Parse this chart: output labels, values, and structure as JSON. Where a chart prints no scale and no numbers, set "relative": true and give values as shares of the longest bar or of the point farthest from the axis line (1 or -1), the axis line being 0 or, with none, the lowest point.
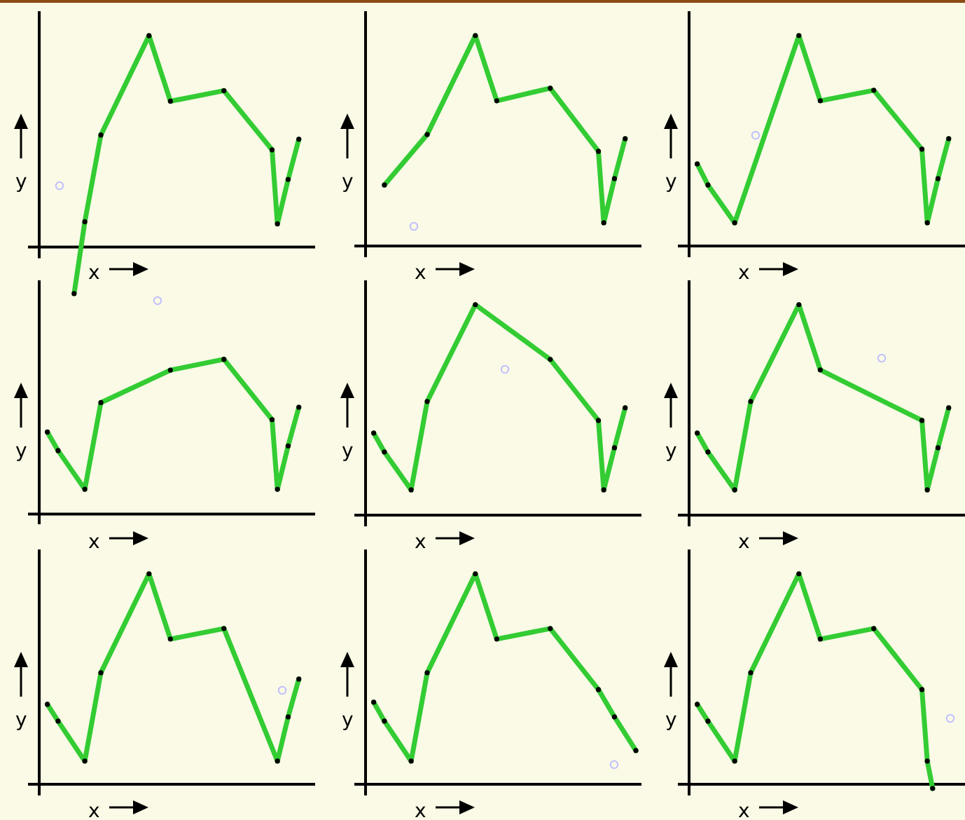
{
  "chart_data": [
    {
      "type": "line",
      "xlabel": "x",
      "ylabel": "y",
      "relative": true,
      "marker": "circle",
      "categories": [
        null,
        null,
        null,
        null,
        null,
        null,
        null,
        null,
        null,
        null,
        null,
        null,
        null,
        null,
        null,
        null,
        null,
        null,
        null,
        null,
        null,
        null,
        null,
        null,
        null,
        null,
        null,
        null,
        null,
        null,
        null,
        null,
        null,
        null,
        null,
        null,
        null,
        null,
        null,
        null,
        null,
        null,
        null,
        null,
        null,
        null,
        null,
        null,
        null,
        null,
        null
      ],
      "series": [
        {
          "color": "#33cc33",
          "values": [
            null,
            null,
            null,
            null,
            null,
            null,
            -0.22,
            null,
            0.12,
            null,
            null,
            0.53,
            null,
            null,
            null,
            null,
            null,
            null,
            null,
            null,
            1,
            null,
            null,
            null,
            0.69,
            null,
            null,
            null,
            null,
            null,
            null,
            null,
            null,
            null,
            0.74,
            null,
            null,
            null,
            null,
            null,
            null,
            null,
            null,
            0.46,
            0.11,
            null,
            0.32,
            null,
            0.51,
            null,
            null
          ]
        }
      ]
    },
    {
      "type": "line",
      "xlabel": "x",
      "ylabel": "y",
      "relative": true,
      "marker": "circle",
      "categories": [
        null,
        null,
        null,
        null,
        null,
        null,
        null,
        null,
        null,
        null,
        null,
        null,
        null,
        null,
        null,
        null,
        null,
        null,
        null,
        null,
        null,
        null,
        null,
        null,
        null,
        null,
        null,
        null,
        null,
        null,
        null,
        null,
        null,
        null,
        null,
        null,
        null,
        null,
        null,
        null,
        null,
        null,
        null,
        null,
        null,
        null,
        null,
        null,
        null,
        null,
        null
      ],
      "series": [
        {
          "color": "#33cc33",
          "values": [
            null,
            null,
            null,
            0.29,
            null,
            null,
            null,
            null,
            null,
            null,
            null,
            0.53,
            null,
            null,
            null,
            null,
            null,
            null,
            null,
            null,
            1,
            null,
            null,
            null,
            0.69,
            null,
            null,
            null,
            null,
            null,
            null,
            null,
            null,
            null,
            0.75,
            null,
            null,
            null,
            null,
            null,
            null,
            null,
            null,
            0.45,
            0.11,
            null,
            0.32,
            null,
            0.51,
            null,
            null
          ]
        }
      ]
    },
    {
      "type": "line",
      "xlabel": "x",
      "ylabel": "y",
      "relative": true,
      "marker": "circle",
      "categories": [
        null,
        null,
        null,
        null,
        null,
        null,
        null,
        null,
        null,
        null,
        null,
        null,
        null,
        null,
        null,
        null,
        null,
        null,
        null,
        null,
        null,
        null,
        null,
        null,
        null,
        null,
        null,
        null,
        null,
        null,
        null,
        null,
        null,
        null,
        null,
        null,
        null,
        null,
        null,
        null,
        null,
        null,
        null,
        null,
        null,
        null,
        null,
        null,
        null,
        null,
        null
      ],
      "series": [
        {
          "color": "#33cc33",
          "values": [
            null,
            0.39,
            null,
            0.29,
            null,
            null,
            null,
            null,
            0.11,
            null,
            null,
            null,
            null,
            null,
            null,
            null,
            null,
            null,
            null,
            null,
            1,
            null,
            null,
            null,
            0.69,
            null,
            null,
            null,
            null,
            null,
            null,
            null,
            null,
            null,
            0.74,
            null,
            null,
            null,
            null,
            null,
            null,
            null,
            null,
            0.46,
            0.11,
            null,
            0.32,
            null,
            0.51,
            null,
            null
          ]
        }
      ]
    },
    {
      "type": "line",
      "xlabel": "x",
      "ylabel": "y",
      "relative": true,
      "marker": "circle",
      "categories": [
        null,
        null,
        null,
        null,
        null,
        null,
        null,
        null,
        null,
        null,
        null,
        null,
        null,
        null,
        null,
        null,
        null,
        null,
        null,
        null,
        null,
        null,
        null,
        null,
        null,
        null,
        null,
        null,
        null,
        null,
        null,
        null,
        null,
        null,
        null,
        null,
        null,
        null,
        null,
        null,
        null,
        null,
        null,
        null,
        null,
        null,
        null,
        null,
        null,
        null,
        null
      ],
      "series": [
        {
          "color": "#33cc33",
          "values": [
            null,
            0.53,
            null,
            0.41,
            null,
            null,
            null,
            null,
            0.16,
            null,
            null,
            0.72,
            null,
            null,
            null,
            null,
            null,
            null,
            null,
            null,
            null,
            null,
            null,
            null,
            0.93,
            null,
            null,
            null,
            null,
            null,
            null,
            null,
            null,
            null,
            1,
            null,
            null,
            null,
            null,
            null,
            null,
            null,
            null,
            0.61,
            0.16,
            null,
            0.44,
            null,
            0.69,
            null,
            null
          ]
        }
      ]
    },
    {
      "type": "line",
      "xlabel": "x",
      "ylabel": "y",
      "relative": true,
      "marker": "circle",
      "categories": [
        null,
        null,
        null,
        null,
        null,
        null,
        null,
        null,
        null,
        null,
        null,
        null,
        null,
        null,
        null,
        null,
        null,
        null,
        null,
        null,
        null,
        null,
        null,
        null,
        null,
        null,
        null,
        null,
        null,
        null,
        null,
        null,
        null,
        null,
        null,
        null,
        null,
        null,
        null,
        null,
        null,
        null,
        null,
        null,
        null,
        null,
        null,
        null,
        null,
        null,
        null
      ],
      "series": [
        {
          "color": "#33cc33",
          "values": [
            null,
            0.39,
            null,
            0.3,
            null,
            null,
            null,
            null,
            0.12,
            null,
            null,
            0.54,
            null,
            null,
            null,
            null,
            null,
            null,
            null,
            null,
            1,
            null,
            null,
            null,
            null,
            null,
            null,
            null,
            null,
            null,
            null,
            null,
            null,
            null,
            0.74,
            null,
            null,
            null,
            null,
            null,
            null,
            null,
            null,
            0.45,
            0.12,
            null,
            0.32,
            null,
            0.51,
            null,
            null
          ]
        }
      ]
    },
    {
      "type": "line",
      "xlabel": "x",
      "ylabel": "y",
      "relative": true,
      "marker": "circle",
      "categories": [
        null,
        null,
        null,
        null,
        null,
        null,
        null,
        null,
        null,
        null,
        null,
        null,
        null,
        null,
        null,
        null,
        null,
        null,
        null,
        null,
        null,
        null,
        null,
        null,
        null,
        null,
        null,
        null,
        null,
        null,
        null,
        null,
        null,
        null,
        null,
        null,
        null,
        null,
        null,
        null,
        null,
        null,
        null,
        null,
        null,
        null,
        null,
        null,
        null,
        null,
        null
      ],
      "series": [
        {
          "color": "#33cc33",
          "values": [
            null,
            0.39,
            null,
            0.3,
            null,
            null,
            null,
            null,
            0.12,
            null,
            null,
            0.54,
            null,
            null,
            null,
            null,
            null,
            null,
            null,
            null,
            1,
            null,
            null,
            null,
            0.69,
            null,
            null,
            null,
            null,
            null,
            null,
            null,
            null,
            null,
            null,
            null,
            null,
            null,
            null,
            null,
            null,
            null,
            null,
            0.45,
            0.12,
            null,
            0.32,
            null,
            0.51,
            null,
            null
          ]
        }
      ]
    },
    {
      "type": "line",
      "xlabel": "x",
      "ylabel": "y",
      "relative": true,
      "marker": "circle",
      "categories": [
        null,
        null,
        null,
        null,
        null,
        null,
        null,
        null,
        null,
        null,
        null,
        null,
        null,
        null,
        null,
        null,
        null,
        null,
        null,
        null,
        null,
        null,
        null,
        null,
        null,
        null,
        null,
        null,
        null,
        null,
        null,
        null,
        null,
        null,
        null,
        null,
        null,
        null,
        null,
        null,
        null,
        null,
        null,
        null,
        null,
        null,
        null,
        null,
        null,
        null,
        null
      ],
      "series": [
        {
          "color": "#33cc33",
          "values": [
            null,
            0.38,
            null,
            0.3,
            null,
            null,
            null,
            null,
            0.11,
            null,
            null,
            0.53,
            null,
            null,
            null,
            null,
            null,
            null,
            null,
            null,
            1,
            null,
            null,
            null,
            0.69,
            null,
            null,
            null,
            null,
            null,
            null,
            null,
            null,
            null,
            0.74,
            null,
            null,
            null,
            null,
            null,
            null,
            null,
            null,
            null,
            0.11,
            null,
            0.32,
            null,
            0.5,
            null,
            null
          ]
        }
      ]
    },
    {
      "type": "line",
      "xlabel": "x",
      "ylabel": "y",
      "relative": true,
      "marker": "circle",
      "categories": [
        null,
        null,
        null,
        null,
        null,
        null,
        null,
        null,
        null,
        null,
        null,
        null,
        null,
        null,
        null,
        null,
        null,
        null,
        null,
        null,
        null,
        null,
        null,
        null,
        null,
        null,
        null,
        null,
        null,
        null,
        null,
        null,
        null,
        null,
        null,
        null,
        null,
        null,
        null,
        null,
        null,
        null,
        null,
        null,
        null,
        null,
        null,
        null,
        null,
        null,
        null
      ],
      "series": [
        {
          "color": "#33cc33",
          "values": [
            null,
            0.39,
            null,
            0.3,
            null,
            null,
            null,
            null,
            0.11,
            null,
            null,
            0.53,
            null,
            null,
            null,
            null,
            null,
            null,
            null,
            null,
            1,
            null,
            null,
            null,
            0.69,
            null,
            null,
            null,
            null,
            null,
            null,
            null,
            null,
            null,
            0.74,
            null,
            null,
            null,
            null,
            null,
            null,
            null,
            null,
            0.45,
            null,
            null,
            0.32,
            null,
            null,
            null,
            0.16
          ]
        }
      ]
    },
    {
      "type": "line",
      "xlabel": "x",
      "ylabel": "y",
      "relative": true,
      "marker": "circle",
      "categories": [
        null,
        null,
        null,
        null,
        null,
        null,
        null,
        null,
        null,
        null,
        null,
        null,
        null,
        null,
        null,
        null,
        null,
        null,
        null,
        null,
        null,
        null,
        null,
        null,
        null,
        null,
        null,
        null,
        null,
        null,
        null,
        null,
        null,
        null,
        null,
        null,
        null,
        null,
        null,
        null,
        null,
        null,
        null,
        null,
        null,
        null,
        null,
        null,
        null,
        null,
        null
      ],
      "series": [
        {
          "color": "#33cc33",
          "values": [
            null,
            0.38,
            null,
            0.3,
            null,
            null,
            null,
            null,
            0.11,
            null,
            null,
            0.53,
            null,
            null,
            null,
            null,
            null,
            null,
            null,
            null,
            1,
            null,
            null,
            null,
            0.69,
            null,
            null,
            null,
            null,
            null,
            null,
            null,
            null,
            null,
            0.74,
            null,
            null,
            null,
            null,
            null,
            null,
            null,
            null,
            0.45,
            0.11,
            -0.02,
            null,
            null,
            null,
            null,
            null
          ]
        }
      ]
    }
  ]
}
